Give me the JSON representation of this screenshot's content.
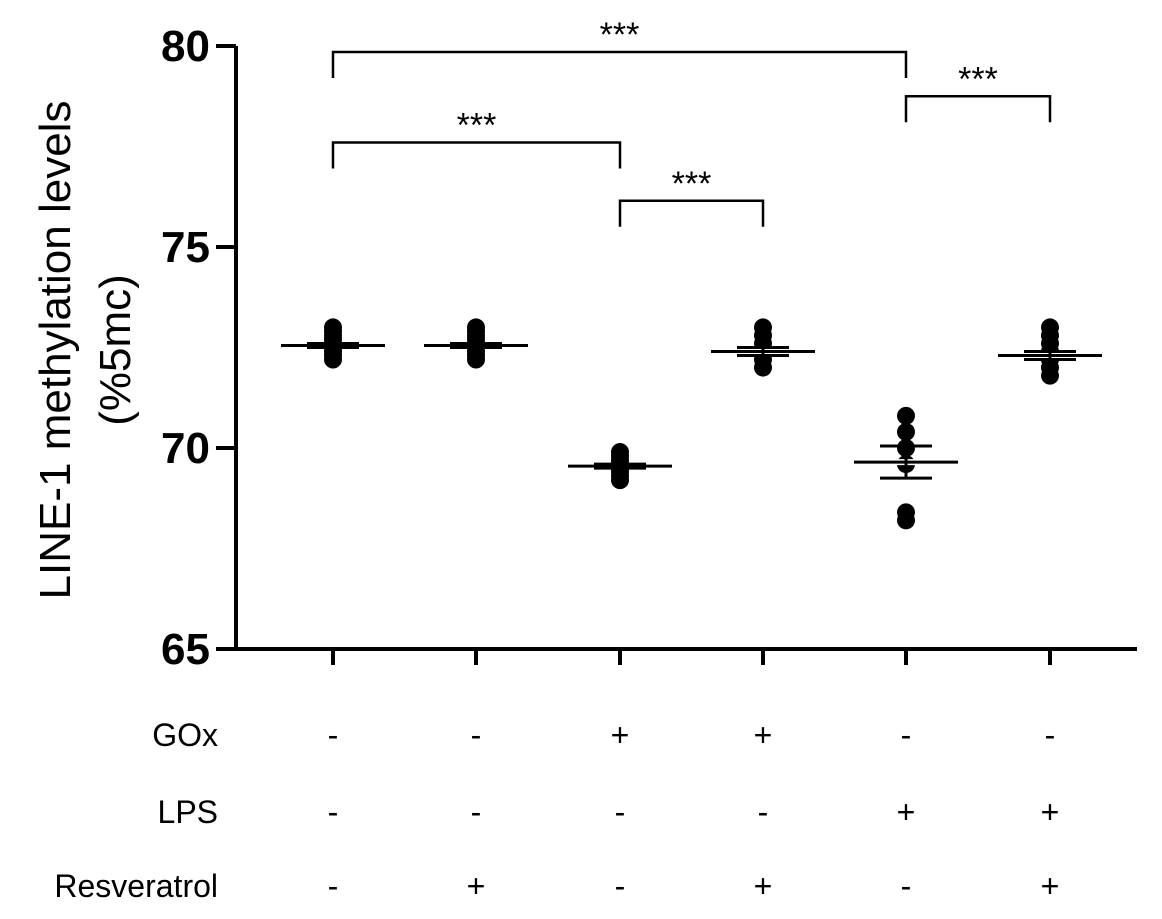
{
  "chart_data": {
    "type": "scatter",
    "ylabel_line1": "LINE-1 methylation levels",
    "ylabel_line2": "(%5mc)",
    "ylim": [
      65,
      80
    ],
    "yticks": [
      65,
      70,
      75,
      80
    ],
    "groups": [
      {
        "id": "g1",
        "mean": 72.55,
        "sem": 0.05,
        "points": [
          72.2,
          72.3,
          72.4,
          72.5,
          72.6,
          72.7,
          72.8,
          72.9,
          73.0
        ]
      },
      {
        "id": "g2",
        "mean": 72.55,
        "sem": 0.05,
        "points": [
          72.2,
          72.3,
          72.4,
          72.5,
          72.6,
          72.7,
          72.8,
          72.9,
          73.0
        ]
      },
      {
        "id": "g3",
        "mean": 69.55,
        "sem": 0.05,
        "points": [
          69.2,
          69.3,
          69.4,
          69.5,
          69.6,
          69.7,
          69.8,
          69.9
        ]
      },
      {
        "id": "g4",
        "mean": 72.4,
        "sem": 0.1,
        "points": [
          72.0,
          72.2,
          72.4,
          72.6,
          72.8,
          73.0
        ]
      },
      {
        "id": "g5",
        "mean": 69.65,
        "sem": 0.4,
        "points": [
          68.2,
          68.4,
          69.6,
          70.0,
          70.4,
          70.8
        ]
      },
      {
        "id": "g6",
        "mean": 72.3,
        "sem": 0.1,
        "points": [
          71.8,
          72.0,
          72.2,
          72.4,
          72.6,
          72.8,
          73.0
        ]
      }
    ],
    "conditions": [
      {
        "label": "GOx",
        "values": [
          "-",
          "-",
          "+",
          "+",
          "-",
          "-"
        ]
      },
      {
        "label": "LPS",
        "values": [
          "-",
          "-",
          "-",
          "-",
          "+",
          "+"
        ]
      },
      {
        "label": "Resveratrol",
        "values": [
          "-",
          "+",
          "-",
          "+",
          "-",
          "+"
        ]
      }
    ],
    "significance": [
      {
        "from": 0,
        "to": 4,
        "y": 79.85,
        "label": "***"
      },
      {
        "from": 0,
        "to": 2,
        "y": 77.6,
        "label": "***"
      },
      {
        "from": 2,
        "to": 3,
        "y": 76.15,
        "label": "***"
      },
      {
        "from": 4,
        "to": 5,
        "y": 78.75,
        "label": "***"
      }
    ]
  }
}
